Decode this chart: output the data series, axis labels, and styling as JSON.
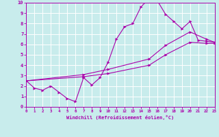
{
  "title": "",
  "xlabel": "Windchill (Refroidissement éolien,°C)",
  "ylabel": "",
  "xlim": [
    0,
    23
  ],
  "ylim": [
    0,
    10
  ],
  "xticks": [
    0,
    1,
    2,
    3,
    4,
    5,
    6,
    7,
    8,
    9,
    10,
    11,
    12,
    13,
    14,
    15,
    16,
    17,
    18,
    19,
    20,
    21,
    22,
    23
  ],
  "yticks": [
    0,
    1,
    2,
    3,
    4,
    5,
    6,
    7,
    8,
    9,
    10
  ],
  "background_color": "#c8ecec",
  "grid_color": "#ffffff",
  "line_color": "#aa00aa",
  "lines": [
    {
      "x": [
        0,
        1,
        2,
        3,
        4,
        5,
        6,
        7,
        8,
        9,
        10,
        11,
        12,
        13,
        14,
        15,
        16,
        17,
        18,
        19,
        20,
        21,
        22,
        23
      ],
      "y": [
        2.5,
        1.8,
        1.6,
        2.0,
        1.4,
        0.8,
        0.5,
        2.8,
        2.1,
        2.8,
        4.3,
        6.5,
        7.7,
        8.0,
        9.6,
        10.4,
        10.2,
        8.9,
        8.2,
        7.5,
        8.2,
        6.4,
        6.3,
        6.2
      ]
    },
    {
      "x": [
        0,
        7,
        10,
        15,
        17,
        20,
        22,
        23
      ],
      "y": [
        2.5,
        3.1,
        3.6,
        4.6,
        5.9,
        7.2,
        6.5,
        6.2
      ]
    },
    {
      "x": [
        0,
        7,
        10,
        15,
        17,
        20,
        22,
        23
      ],
      "y": [
        2.5,
        2.9,
        3.2,
        4.0,
        5.0,
        6.2,
        6.1,
        6.1
      ]
    }
  ]
}
